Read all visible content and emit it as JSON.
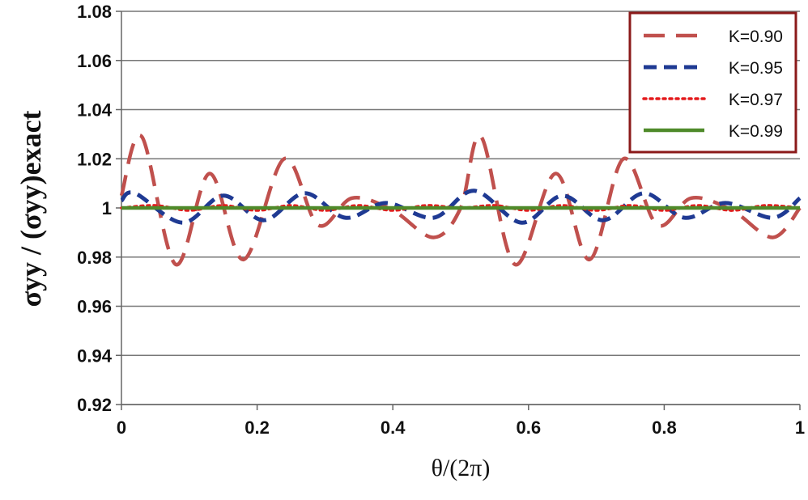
{
  "chart_data": {
    "type": "line",
    "title": "",
    "xlabel": "θ/(2π)",
    "ylabel": "σyy / (σyy)exact",
    "xlim": [
      0,
      1
    ],
    "ylim": [
      0.92,
      1.08
    ],
    "xticks": [
      0,
      0.2,
      0.4,
      0.6,
      0.8,
      1
    ],
    "xtick_labels": [
      "0",
      "0.2",
      "0.4",
      "0.6",
      "0.8",
      "1"
    ],
    "yticks": [
      0.92,
      0.94,
      0.96,
      0.98,
      1.0,
      1.02,
      1.04,
      1.06,
      1.08
    ],
    "ytick_labels": [
      "0.92",
      "0.94",
      "0.96",
      "0.98",
      "1",
      "1.02",
      "1.04",
      "1.06",
      "1.08"
    ],
    "grid": "horizontal",
    "legend_position": "top-right",
    "series": [
      {
        "name": "K=0.90",
        "color": "#C0504D",
        "dash": "long-dash",
        "x": [
          0,
          0.03,
          0.08,
          0.13,
          0.18,
          0.24,
          0.29,
          0.34,
          0.4,
          0.46,
          0.5,
          0.53,
          0.58,
          0.64,
          0.69,
          0.74,
          0.79,
          0.84,
          0.9,
          0.96,
          1
        ],
        "y": [
          1.005,
          1.029,
          0.977,
          1.014,
          0.979,
          1.02,
          0.993,
          1.004,
          0.999,
          0.988,
          1.0,
          1.029,
          0.977,
          1.014,
          0.979,
          1.02,
          0.993,
          1.004,
          0.999,
          0.988,
          1.0
        ]
      },
      {
        "name": "K=0.95",
        "color": "#1F3A93",
        "dash": "dash",
        "x": [
          0,
          0.02,
          0.09,
          0.15,
          0.21,
          0.27,
          0.33,
          0.39,
          0.46,
          0.52,
          0.59,
          0.65,
          0.71,
          0.77,
          0.83,
          0.89,
          0.96,
          1
        ],
        "y": [
          1.003,
          1.006,
          0.994,
          1.005,
          0.995,
          1.006,
          0.996,
          1.002,
          0.996,
          1.007,
          0.994,
          1.005,
          0.995,
          1.006,
          0.996,
          1.002,
          0.996,
          1.004
        ]
      },
      {
        "name": "K=0.97",
        "color": "#E41A1C",
        "dash": "dot",
        "x": [
          0,
          0.05,
          0.1,
          0.15,
          0.2,
          0.25,
          0.3,
          0.35,
          0.4,
          0.45,
          0.5,
          0.55,
          0.6,
          0.65,
          0.7,
          0.75,
          0.8,
          0.85,
          0.9,
          0.95,
          1
        ],
        "y": [
          1.0,
          1.001,
          0.999,
          1.001,
          0.999,
          1.001,
          0.999,
          1.001,
          0.999,
          1.001,
          1.0,
          1.001,
          0.999,
          1.001,
          0.999,
          1.001,
          0.999,
          1.001,
          0.999,
          1.001,
          1.0
        ]
      },
      {
        "name": "K=0.99",
        "color": "#4F8A2A",
        "dash": "solid",
        "x": [
          0,
          1
        ],
        "y": [
          1.0,
          1.0
        ]
      }
    ]
  }
}
